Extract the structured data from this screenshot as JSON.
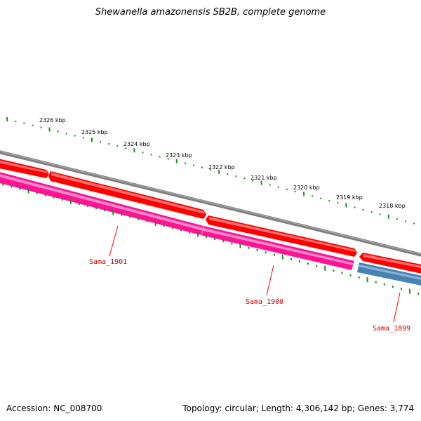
{
  "title": "Shewanella amazonensis SB2B, complete genome",
  "footer": {
    "accession": "Accession: NC_008700",
    "summary": "Topology: circular; Length: 4,306,142 bp; Genes: 3,774"
  },
  "colors": {
    "backbone": "#888888",
    "forward_cds": "#ff0000",
    "reverse_cds": "#ff1493",
    "reverse_cds_alt": "#4682b4",
    "ticks": "#228b22",
    "gene_label": "#cc0000"
  },
  "kbp_labels": [
    "2326 kbp",
    "2325 kbp",
    "2324 kbp",
    "2323 kbp",
    "2322 kbp",
    "2321 kbp",
    "2320 kbp",
    "2319 kbp",
    "2318 kbp"
  ],
  "gene_labels": [
    "Sama_1901",
    "Sama_1900",
    "Sama_1899"
  ]
}
